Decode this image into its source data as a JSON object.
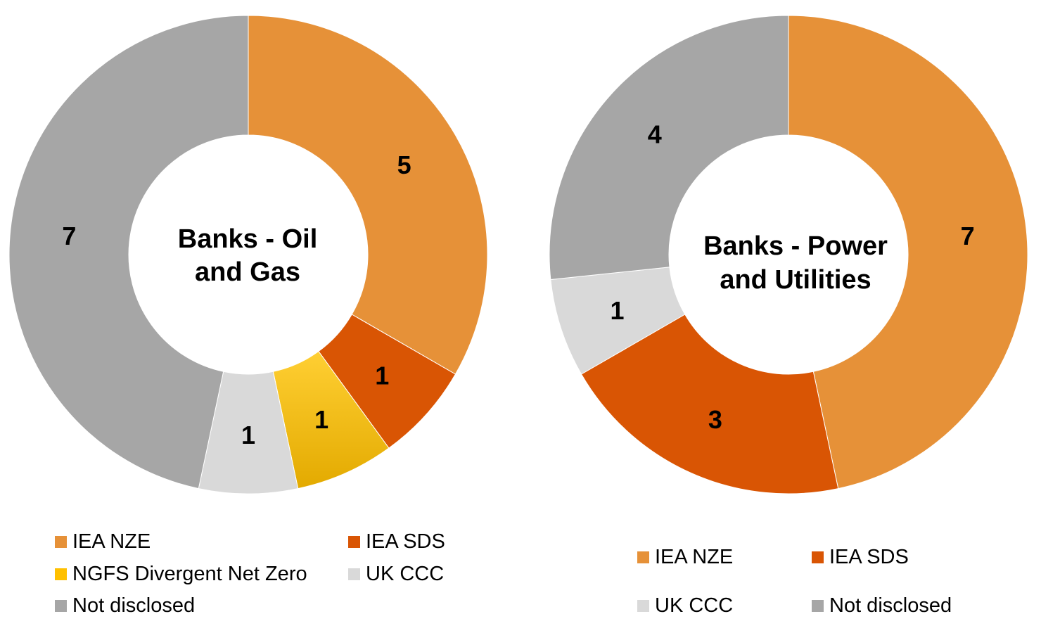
{
  "chart_data": [
    {
      "type": "pie",
      "title": "Banks - Oil and Gas",
      "title_lines": [
        "Banks - Oil",
        "and Gas"
      ],
      "donut": true,
      "slices": [
        {
          "label": "IEA NZE",
          "value": 5,
          "color": "#E69138"
        },
        {
          "label": "IEA SDS",
          "value": 1,
          "color": "#D95504"
        },
        {
          "label": "NGFS Divergent Net Zero",
          "value": 1,
          "color": "#FFC000"
        },
        {
          "label": "UK CCC",
          "value": 1,
          "color": "#D9D9D9"
        },
        {
          "label": "Not disclosed",
          "value": 7,
          "color": "#A6A6A6"
        }
      ],
      "legend": [
        "IEA NZE",
        "IEA SDS",
        "NGFS Divergent Net Zero",
        "UK CCC",
        "Not disclosed"
      ],
      "legend_position": "bottom"
    },
    {
      "type": "pie",
      "title": "Banks - Power and Utilities",
      "title_lines": [
        "Banks - Power",
        "and Utilities"
      ],
      "donut": true,
      "slices": [
        {
          "label": "IEA NZE",
          "value": 7,
          "color": "#E69138"
        },
        {
          "label": "IEA SDS",
          "value": 3,
          "color": "#D95504"
        },
        {
          "label": "UK CCC",
          "value": 1,
          "color": "#D9D9D9"
        },
        {
          "label": "Not disclosed",
          "value": 4,
          "color": "#A6A6A6"
        }
      ],
      "legend": [
        "IEA NZE",
        "IEA SDS",
        "UK CCC",
        "Not disclosed"
      ],
      "legend_position": "bottom"
    }
  ]
}
